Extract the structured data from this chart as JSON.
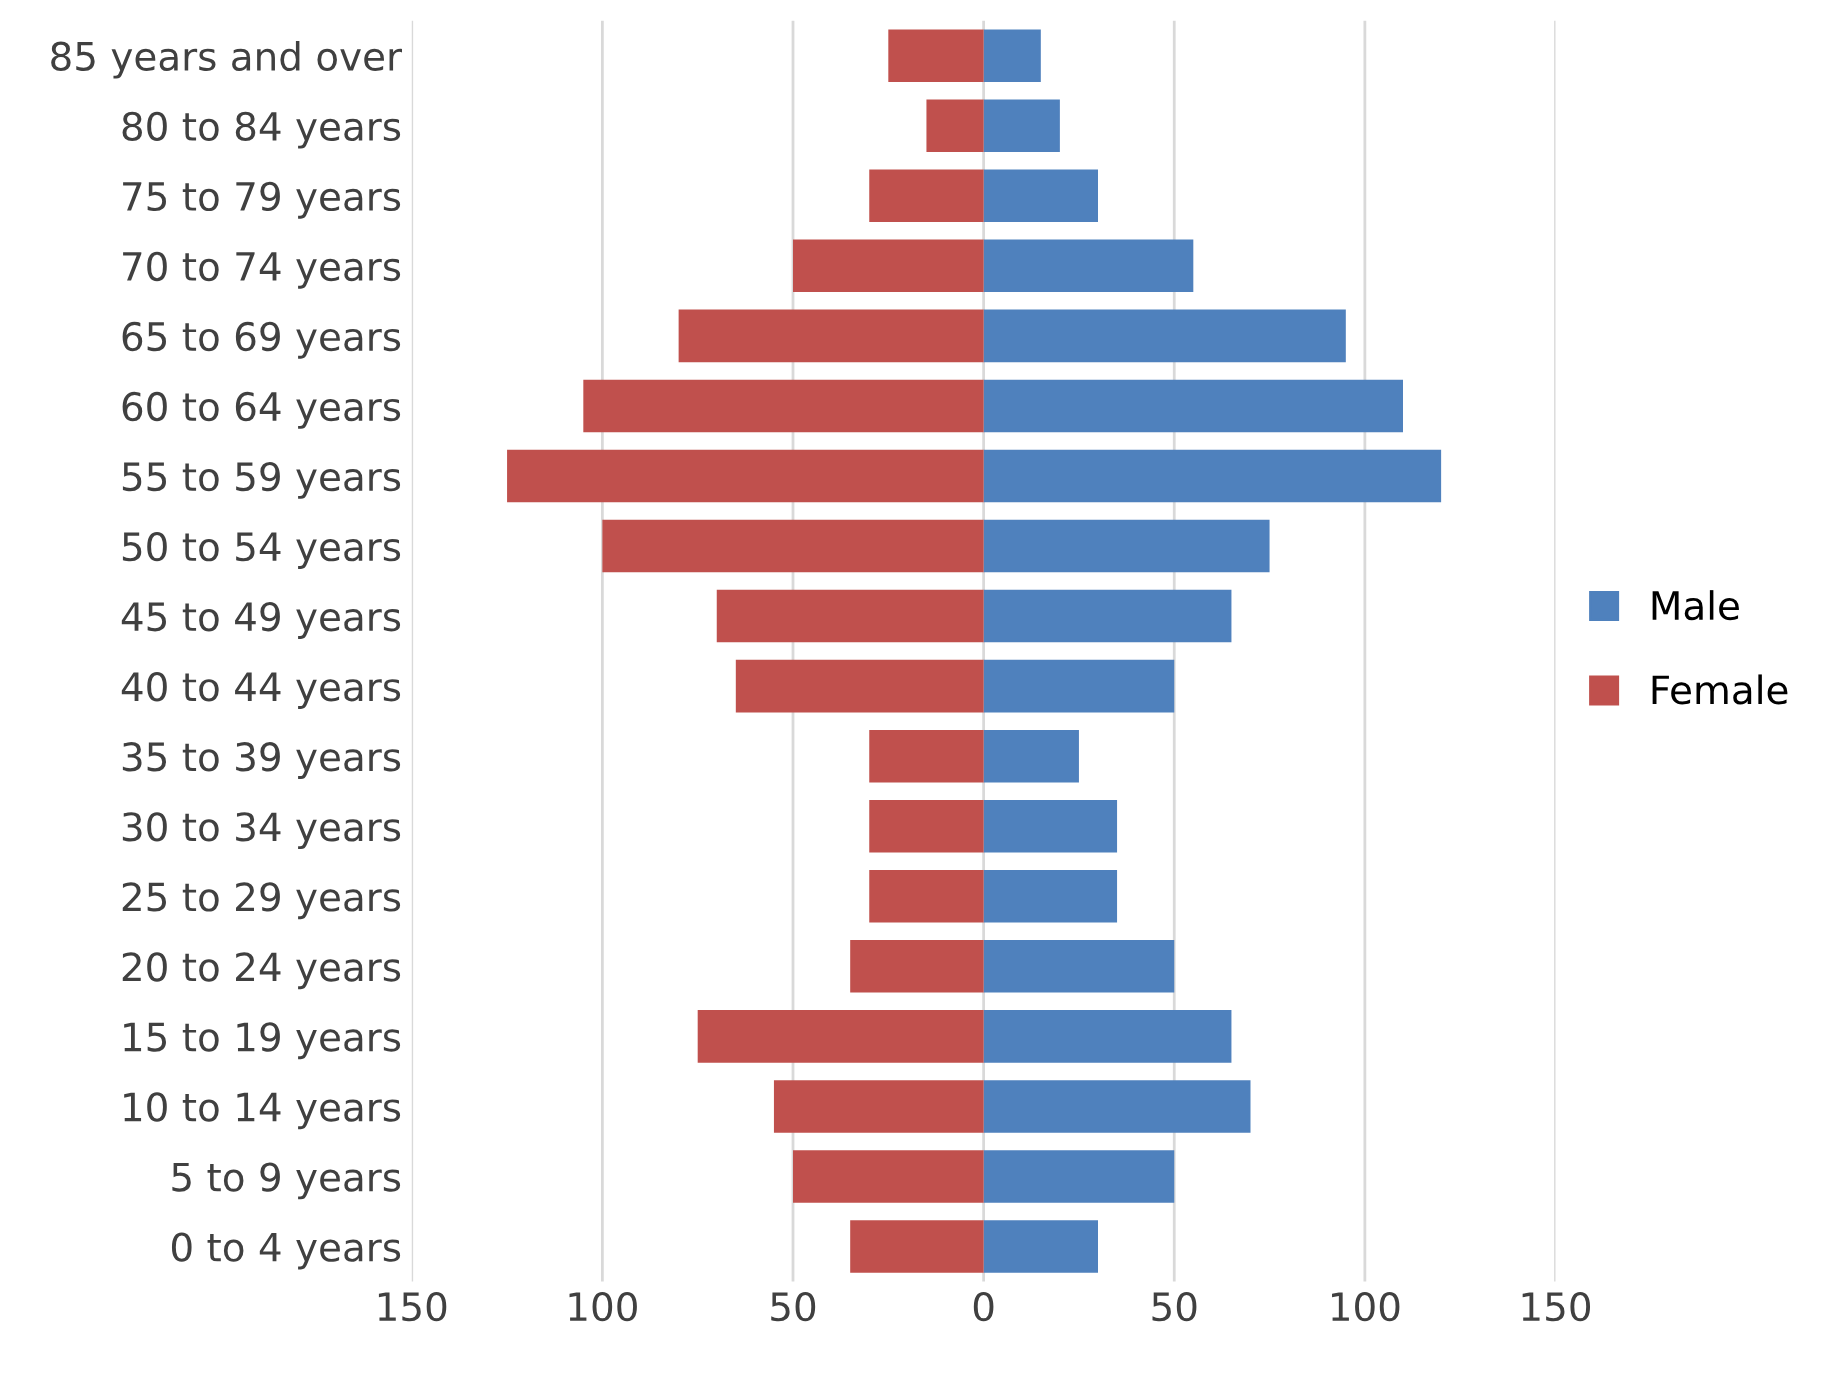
{
  "chart_data": {
    "type": "bar",
    "orientation": "horizontal",
    "categories": [
      "85 years and over",
      "80 to 84 years",
      "75 to 79 years",
      "70 to 74 years",
      "65 to 69 years",
      "60 to 64 years",
      "55 to 59 years",
      "50 to 54 years",
      "45 to 49 years",
      "40 to 44 years",
      "35 to 39 years",
      "30 to 34 years",
      "25 to 29 years",
      "20 to 24 years",
      "15 to 19 years",
      "10 to 14 years",
      "5 to 9 years",
      "0 to 4 years"
    ],
    "series": [
      {
        "name": "Male",
        "color": "#4f81bd",
        "values": [
          15,
          20,
          30,
          55,
          95,
          110,
          120,
          75,
          65,
          50,
          25,
          35,
          35,
          50,
          65,
          70,
          50,
          30
        ]
      },
      {
        "name": "Female",
        "color": "#c0504d",
        "values": [
          -25,
          -15,
          -30,
          -50,
          -80,
          -105,
          -125,
          -100,
          -70,
          -65,
          -30,
          -30,
          -30,
          -35,
          -75,
          -55,
          -50,
          -35
        ]
      }
    ],
    "xlim": [
      -150,
      150
    ],
    "xticks": [
      {
        "value": -150,
        "label": "150"
      },
      {
        "value": -100,
        "label": "100"
      },
      {
        "value": -50,
        "label": "50"
      },
      0,
      50,
      100,
      150
    ],
    "grid": "x",
    "legend": "right",
    "stacked": true
  }
}
